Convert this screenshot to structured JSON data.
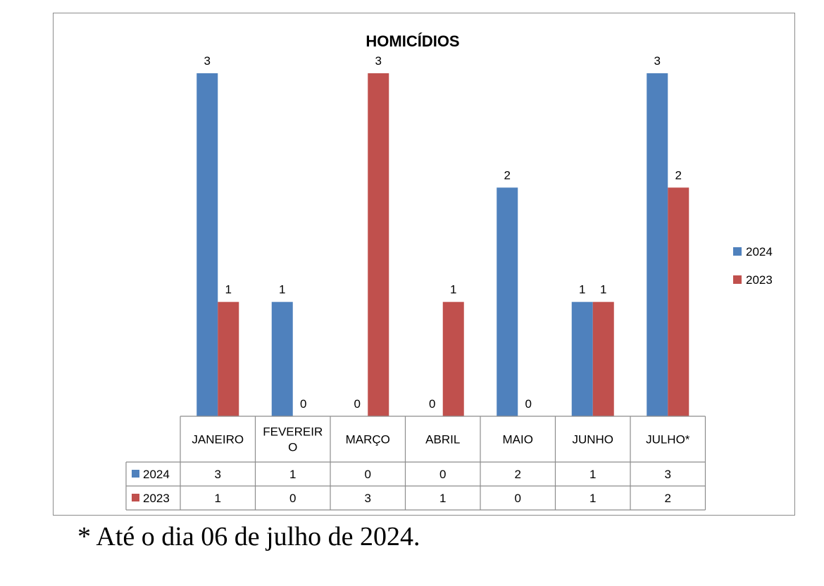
{
  "chart_data": {
    "type": "bar",
    "title": "HOMICÍDIOS",
    "categories": [
      "JANEIRO",
      "FEVEREIRO",
      "MARÇO",
      "ABRIL",
      "MAIO",
      "JUNHO",
      "JULHO*"
    ],
    "category_display": [
      [
        "JANEIRO"
      ],
      [
        "FEVEREIR",
        "O"
      ],
      [
        "MARÇO"
      ],
      [
        "ABRIL"
      ],
      [
        "MAIO"
      ],
      [
        "JUNHO"
      ],
      [
        "JULHO*"
      ]
    ],
    "series": [
      {
        "name": "2024",
        "color": "#4F81BD",
        "values": [
          3,
          1,
          0,
          0,
          2,
          1,
          3
        ]
      },
      {
        "name": "2023",
        "color": "#C0504D",
        "values": [
          1,
          0,
          3,
          1,
          0,
          1,
          2
        ]
      }
    ],
    "ylim": [
      0,
      3
    ],
    "xlabel": "",
    "ylabel": "",
    "grid": false,
    "legend": "right",
    "data_table": true
  },
  "footnote": "* Até o dia 06 de julho de 2024."
}
